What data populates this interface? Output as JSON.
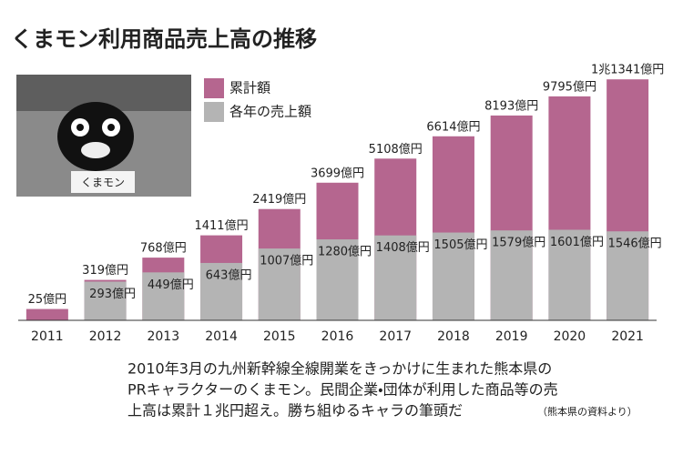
{
  "chart_data": {
    "type": "bar",
    "title": "くまモン利用商品売上高の推移",
    "photo_sign": "くまモン",
    "categories": [
      "2011",
      "2012",
      "2013",
      "2014",
      "2015",
      "2016",
      "2017",
      "2018",
      "2019",
      "2020",
      "2021"
    ],
    "series": [
      {
        "name": "累計額",
        "color": "#b5668f",
        "values": [
          25,
          319,
          768,
          1411,
          2419,
          3699,
          5108,
          6614,
          8193,
          9795,
          11341
        ],
        "value_labels": [
          "25億円",
          "319億円",
          "768億円",
          "1411億円",
          "2419億円",
          "3699億円",
          "5108億円",
          "6614億円",
          "8193億円",
          "9795億円",
          "1兆1341億円"
        ]
      },
      {
        "name": "各年の売上額",
        "color": "#b4b4b4",
        "values": [
          null,
          293,
          449,
          643,
          1007,
          1280,
          1408,
          1505,
          1579,
          1601,
          1546
        ],
        "value_labels": [
          null,
          "293億円",
          "449億円",
          "643億円",
          "1007億円",
          "1280億円",
          "1408億円",
          "1505億円",
          "1579億円",
          "1601億円",
          "1546億円"
        ]
      }
    ],
    "ylim": [
      0,
      12500
    ],
    "yscale": "sqrt",
    "overlap": true,
    "note_lines": [
      "2010年3月の九州新幹線全線開業をきっかけに生まれた熊本県の",
      "PRキャラクターのくまモン。民間企業・団体が利用した商品等の売",
      "上高は累計１兆円超え。勝ち組ゆるキャラの筆頭だ"
    ],
    "source": "（熊本県の資料より）"
  }
}
